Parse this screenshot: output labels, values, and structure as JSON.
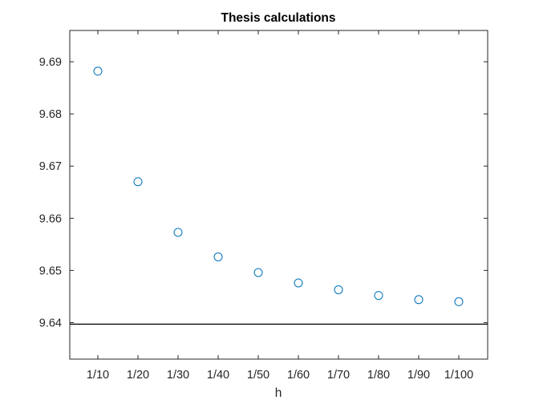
{
  "chart_data": {
    "type": "scatter",
    "title": "Thesis calculations",
    "xlabel": "h",
    "ylabel": "",
    "categories": [
      "1/10",
      "1/20",
      "1/30",
      "1/40",
      "1/50",
      "1/60",
      "1/70",
      "1/80",
      "1/90",
      "1/100"
    ],
    "series": [
      {
        "values": [
          9.6882,
          9.667,
          9.6573,
          9.6526,
          9.6496,
          9.6476,
          9.6463,
          9.6452,
          9.6444,
          9.644
        ],
        "marker": "open-circle",
        "color": "#0072BD"
      }
    ],
    "reference_line": {
      "y": 9.6397,
      "color": "#000000"
    },
    "ylim": [
      9.633,
      9.696
    ],
    "yticks": [
      "9.64",
      "9.65",
      "9.66",
      "9.67",
      "9.68",
      "9.69"
    ],
    "ytick_values": [
      9.64,
      9.65,
      9.66,
      9.67,
      9.68,
      9.69
    ],
    "grid": false,
    "legend": "none"
  }
}
